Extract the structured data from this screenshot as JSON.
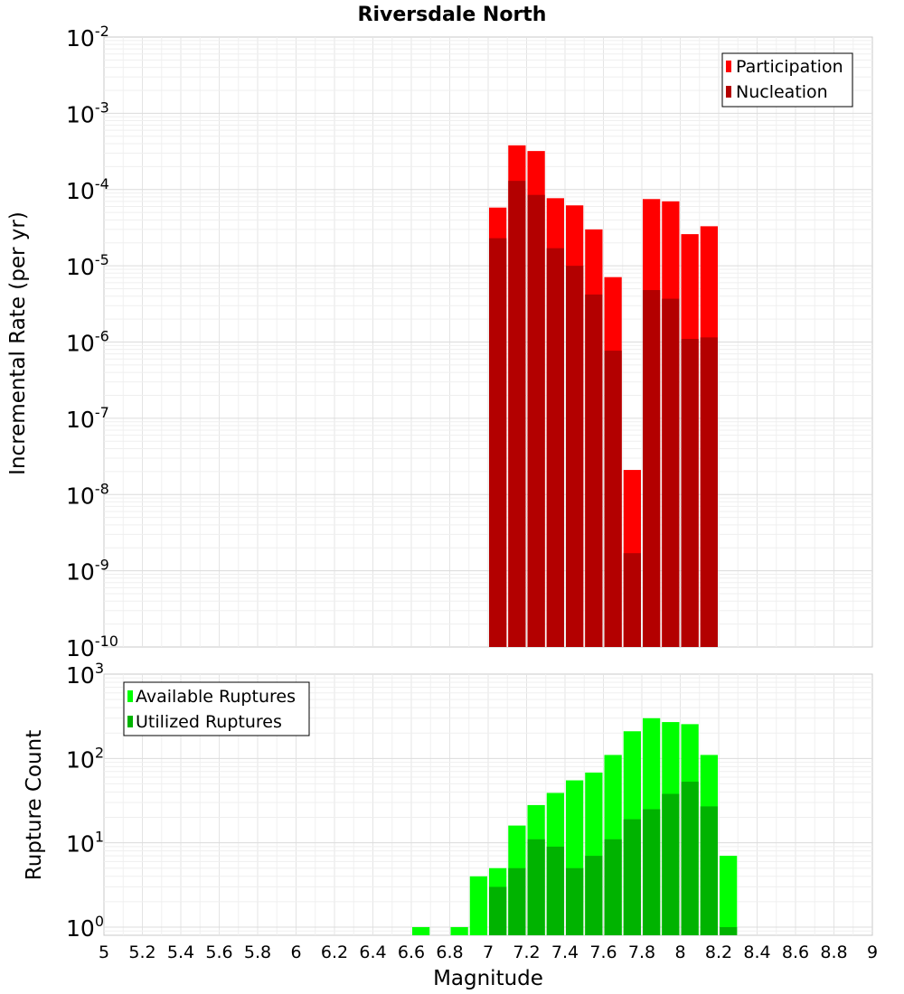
{
  "chart_data": [
    {
      "type": "bar",
      "title": "Riversdale North",
      "ylabel": "Incremental Rate (per yr)",
      "xlim": [
        5,
        9
      ],
      "ylim": [
        1e-10,
        0.01
      ],
      "yscale": "log",
      "grid": true,
      "legend": "top-right",
      "bin_width": 0.1,
      "y_tick_exponents": [
        "-10",
        "-9",
        "-8",
        "-7",
        "-6",
        "-5",
        "-4",
        "-3",
        "-2"
      ],
      "colors": {
        "Participation": "#ff0000",
        "Nucleation": "#b30000"
      },
      "x": [
        7.05,
        7.15,
        7.25,
        7.35,
        7.45,
        7.55,
        7.65,
        7.75,
        7.85,
        7.95,
        8.05,
        8.15
      ],
      "series": [
        {
          "name": "Participation",
          "values": [
            5.8e-05,
            0.00038,
            0.00032,
            7.7e-05,
            6.2e-05,
            3e-05,
            7.1e-06,
            2.1e-08,
            7.5e-05,
            7e-05,
            2.6e-05,
            3.3e-05
          ]
        },
        {
          "name": "Nucleation",
          "values": [
            2.3e-05,
            0.00013,
            8.5e-05,
            1.7e-05,
            1e-05,
            4.2e-06,
            7.7e-07,
            1.7e-09,
            4.8e-06,
            3.7e-06,
            1.1e-06,
            1.15e-06
          ]
        }
      ]
    },
    {
      "type": "bar",
      "xlabel": "Magnitude",
      "ylabel": "Rupture Count",
      "xlim": [
        5,
        9
      ],
      "ylim": [
        0.8,
        1000
      ],
      "yscale": "log",
      "grid": true,
      "legend": "top-left",
      "bin_width": 0.1,
      "y_tick_exponents": [
        "0",
        "1",
        "2",
        "3"
      ],
      "x_ticks": [
        "5",
        "5.2",
        "5.4",
        "5.6",
        "5.8",
        "6",
        "6.2",
        "6.4",
        "6.6",
        "6.8",
        "7",
        "7.2",
        "7.4",
        "7.6",
        "7.8",
        "8",
        "8.2",
        "8.4",
        "8.6",
        "8.8",
        "9"
      ],
      "colors": {
        "Available Ruptures": "#00ff00",
        "Utilized Ruptures": "#00b300"
      },
      "x": [
        6.65,
        6.85,
        6.95,
        7.05,
        7.15,
        7.25,
        7.35,
        7.45,
        7.55,
        7.65,
        7.75,
        7.85,
        7.95,
        8.05,
        8.15,
        8.25
      ],
      "series": [
        {
          "name": "Available Ruptures",
          "values": [
            1,
            1,
            4,
            5,
            16,
            28,
            39,
            55,
            68,
            110,
            210,
            300,
            270,
            255,
            110,
            7
          ]
        },
        {
          "name": "Utilized Ruptures",
          "values": [
            0,
            0,
            0,
            3,
            5,
            11,
            9,
            5,
            7,
            11,
            19,
            25,
            38,
            53,
            27,
            1
          ]
        }
      ]
    }
  ]
}
